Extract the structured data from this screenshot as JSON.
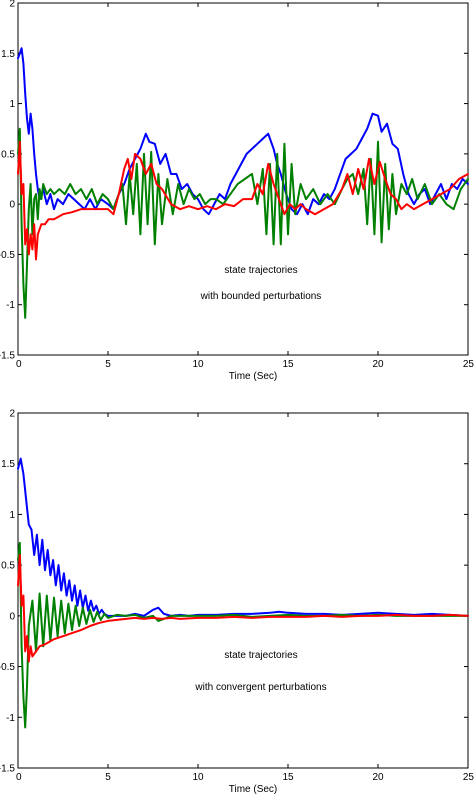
{
  "chart_data": [
    {
      "type": "line",
      "xlabel": "Time (Sec)",
      "ylabel": "",
      "title": "",
      "xlim": [
        0,
        25
      ],
      "ylim": [
        -1.5,
        2
      ],
      "xticks": [
        "0",
        "5",
        "10",
        "15",
        "20",
        "25"
      ],
      "yticks": [
        "-1.5",
        "-1",
        "-0.5",
        "0",
        "0.5",
        "1",
        "1.5",
        "2"
      ],
      "grid": false,
      "annotations": [
        "state trajectories",
        "with bounded perturbations"
      ],
      "series": [
        {
          "color": "#0000ff",
          "x": [
            0,
            0.1,
            0.2,
            0.3,
            0.4,
            0.5,
            0.6,
            0.7,
            0.8,
            0.9,
            1.0,
            1.1,
            1.2,
            1.4,
            1.6,
            1.8,
            2.0,
            2.2,
            2.5,
            2.8,
            3.1,
            3.4,
            3.7,
            4.0,
            4.3,
            4.6,
            5.0,
            5.3,
            5.6,
            5.9,
            6.2,
            6.5,
            6.8,
            7.1,
            7.3,
            7.6,
            7.9,
            8.2,
            8.5,
            8.8,
            9.1,
            9.4,
            9.7,
            10.0,
            10.3,
            10.6,
            10.9,
            11.2,
            11.5,
            11.8,
            12.1,
            12.4,
            12.7,
            13.0,
            13.3,
            13.6,
            13.9,
            14.2,
            14.4,
            14.6,
            14.9,
            15.2,
            15.5,
            15.8,
            16.1,
            16.4,
            16.7,
            17.0,
            17.3,
            17.6,
            17.9,
            18.2,
            18.5,
            18.8,
            19.1,
            19.4,
            19.7,
            20.0,
            20.2,
            20.5,
            20.8,
            21.1,
            21.4,
            21.7,
            22.0,
            22.3,
            22.6,
            22.9,
            23.2,
            23.5,
            23.8,
            24.1,
            24.4,
            24.7,
            25.0
          ],
          "y": [
            1.45,
            1.5,
            1.55,
            1.4,
            1.1,
            0.85,
            0.7,
            0.9,
            0.75,
            0.5,
            0.3,
            0.15,
            0.05,
            0.15,
            0.0,
            0.1,
            -0.05,
            0.05,
            0.0,
            0.1,
            0.05,
            0.0,
            -0.05,
            0.05,
            -0.05,
            0.05,
            0.0,
            -0.05,
            0.1,
            0.2,
            0.35,
            0.45,
            0.55,
            0.7,
            0.62,
            0.6,
            0.4,
            0.5,
            0.3,
            0.3,
            0.15,
            0.2,
            0.1,
            0.05,
            -0.05,
            -0.1,
            0.0,
            0.1,
            0.05,
            0.2,
            0.3,
            0.4,
            0.5,
            0.55,
            0.6,
            0.65,
            0.7,
            0.55,
            0.4,
            0.3,
            0.1,
            -0.05,
            -0.1,
            0.0,
            -0.1,
            0.05,
            0.0,
            0.1,
            0.05,
            0.15,
            0.3,
            0.45,
            0.5,
            0.55,
            0.65,
            0.75,
            0.9,
            0.88,
            0.72,
            0.8,
            0.6,
            0.55,
            0.3,
            0.1,
            0.0,
            0.1,
            0.15,
            0.0,
            0.1,
            0.2,
            0.05,
            0.2,
            0.15,
            0.25,
            0.2
          ]
        },
        {
          "color": "#008000",
          "x": [
            0,
            0.1,
            0.2,
            0.3,
            0.4,
            0.5,
            0.6,
            0.7,
            0.8,
            0.9,
            1.0,
            1.1,
            1.2,
            1.3,
            1.4,
            1.6,
            1.8,
            2.0,
            2.3,
            2.6,
            2.9,
            3.2,
            3.5,
            3.8,
            4.1,
            4.4,
            4.7,
            5.0,
            5.3,
            5.6,
            5.8,
            6.0,
            6.2,
            6.4,
            6.6,
            6.8,
            7.0,
            7.2,
            7.4,
            7.6,
            7.8,
            8.0,
            8.3,
            8.6,
            8.9,
            9.2,
            9.5,
            9.8,
            10.1,
            10.4,
            10.7,
            11.0,
            11.4,
            11.8,
            12.2,
            12.6,
            13.0,
            13.3,
            13.6,
            13.8,
            14.0,
            14.2,
            14.4,
            14.6,
            14.8,
            15.0,
            15.2,
            15.4,
            15.7,
            16.0,
            16.4,
            16.8,
            17.2,
            17.6,
            18.0,
            18.3,
            18.6,
            18.9,
            19.2,
            19.4,
            19.6,
            19.8,
            20.0,
            20.2,
            20.4,
            20.6,
            20.8,
            21.0,
            21.3,
            21.6,
            21.9,
            22.2,
            22.6,
            23.0,
            23.4,
            23.8,
            24.2,
            24.6,
            25.0
          ],
          "y": [
            0.5,
            0.75,
            -0.2,
            -0.8,
            -1.13,
            -0.6,
            -0.05,
            0.2,
            -0.3,
            0.05,
            0.1,
            -0.15,
            0.15,
            0.05,
            0.2,
            0.1,
            0.15,
            0.1,
            0.15,
            0.1,
            0.2,
            0.1,
            0.15,
            0.05,
            0.15,
            0.0,
            0.1,
            0.05,
            -0.05,
            0.1,
            0.2,
            -0.2,
            0.3,
            -0.1,
            0.4,
            -0.3,
            0.5,
            -0.2,
            0.52,
            -0.4,
            0.3,
            -0.2,
            0.25,
            -0.1,
            0.2,
            0.0,
            0.15,
            0.05,
            0.1,
            0.0,
            0.05,
            0.05,
            0.0,
            0.1,
            0.2,
            0.25,
            0.3,
            0.0,
            0.35,
            -0.3,
            0.4,
            -0.4,
            0.5,
            -0.4,
            0.6,
            -0.3,
            0.4,
            -0.1,
            0.2,
            0.05,
            0.15,
            0.0,
            0.1,
            0.0,
            0.15,
            0.25,
            0.3,
            0.1,
            0.35,
            -0.2,
            0.45,
            -0.3,
            0.62,
            -0.38,
            0.4,
            -0.25,
            0.3,
            -0.1,
            0.2,
            0.1,
            0.25,
            0.05,
            0.2,
            0.0,
            0.1,
            0.0,
            -0.05,
            0.15,
            0.25
          ]
        },
        {
          "color": "#ff0000",
          "x": [
            0,
            0.1,
            0.2,
            0.3,
            0.4,
            0.5,
            0.6,
            0.7,
            0.8,
            0.9,
            1.0,
            1.1,
            1.2,
            1.3,
            1.5,
            1.7,
            2.0,
            2.5,
            3.0,
            3.5,
            4.0,
            4.5,
            5.0,
            5.3,
            5.6,
            5.9,
            6.1,
            6.3,
            6.5,
            6.8,
            7.1,
            7.4,
            7.7,
            8.0,
            8.5,
            9.0,
            9.5,
            10.0,
            10.5,
            11.0,
            11.5,
            12.0,
            12.5,
            13.0,
            13.3,
            13.6,
            13.9,
            14.2,
            14.5,
            14.8,
            15.1,
            15.4,
            15.7,
            16.0,
            16.5,
            17.0,
            17.5,
            18.0,
            18.3,
            18.6,
            18.9,
            19.2,
            19.5,
            19.8,
            20.1,
            20.4,
            20.7,
            21.0,
            21.3,
            21.6,
            22.0,
            22.5,
            23.0,
            23.5,
            24.0,
            24.5,
            25.0
          ],
          "y": [
            0.3,
            0.62,
            0.1,
            0.2,
            -0.4,
            -0.25,
            -0.5,
            -0.3,
            -0.45,
            -0.2,
            -0.55,
            -0.3,
            -0.25,
            -0.2,
            -0.2,
            -0.15,
            -0.15,
            -0.1,
            -0.08,
            -0.05,
            -0.05,
            -0.05,
            -0.05,
            -0.1,
            0.1,
            0.35,
            0.45,
            0.25,
            0.5,
            0.45,
            0.3,
            0.4,
            0.2,
            0.15,
            0.0,
            -0.05,
            -0.02,
            -0.05,
            -0.02,
            -0.05,
            0.0,
            -0.02,
            0.05,
            0.05,
            0.2,
            0.1,
            0.4,
            0.2,
            0.05,
            -0.1,
            0.0,
            -0.05,
            0.0,
            -0.05,
            -0.1,
            -0.05,
            0.0,
            0.15,
            0.3,
            0.1,
            0.35,
            0.15,
            0.45,
            0.2,
            0.42,
            0.25,
            0.1,
            0.05,
            -0.05,
            0.0,
            -0.05,
            0.0,
            0.05,
            0.1,
            0.15,
            0.25,
            0.3
          ]
        }
      ]
    },
    {
      "type": "line",
      "xlabel": "Time (Sec)",
      "ylabel": "",
      "title": "",
      "xlim": [
        0,
        25
      ],
      "ylim": [
        -1.5,
        2
      ],
      "xticks": [
        "0",
        "5",
        "10",
        "15",
        "20",
        "25"
      ],
      "yticks": [
        "-1.5",
        "-1",
        "-0.5",
        "0",
        "0.5",
        "1",
        "1.5",
        "2"
      ],
      "grid": false,
      "annotations": [
        "state trajectories",
        "with convergent perturbations"
      ],
      "series": [
        {
          "color": "#0000ff",
          "x": [
            0,
            0.15,
            0.3,
            0.45,
            0.6,
            0.75,
            0.9,
            1.05,
            1.2,
            1.35,
            1.5,
            1.65,
            1.8,
            1.95,
            2.1,
            2.25,
            2.4,
            2.55,
            2.7,
            2.85,
            3.0,
            3.15,
            3.3,
            3.45,
            3.6,
            3.75,
            3.9,
            4.05,
            4.2,
            4.35,
            4.5,
            4.65,
            4.8,
            5.0,
            5.5,
            6.0,
            6.5,
            7.0,
            7.5,
            7.8,
            8.1,
            8.5,
            9.0,
            9.5,
            10.0,
            11.0,
            12.0,
            13.0,
            14.0,
            14.5,
            15.0,
            16.0,
            17.0,
            18.0,
            19.0,
            20.0,
            21.0,
            22.0,
            23.0,
            24.0,
            25.0
          ],
          "y": [
            1.45,
            1.55,
            1.4,
            1.15,
            0.9,
            0.85,
            0.6,
            0.8,
            0.5,
            0.75,
            0.45,
            0.65,
            0.4,
            0.55,
            0.3,
            0.5,
            0.25,
            0.42,
            0.2,
            0.35,
            0.15,
            0.3,
            0.1,
            0.25,
            0.08,
            0.2,
            0.05,
            0.15,
            0.05,
            0.1,
            0.02,
            0.06,
            0.02,
            0.0,
            0.0,
            0.0,
            0.02,
            0.0,
            0.06,
            0.08,
            0.02,
            0.0,
            0.01,
            0.0,
            0.01,
            0.01,
            0.02,
            0.02,
            0.03,
            0.04,
            0.03,
            0.02,
            0.02,
            0.01,
            0.02,
            0.03,
            0.02,
            0.01,
            0.02,
            0.01,
            0.0
          ]
        },
        {
          "color": "#008000",
          "x": [
            0,
            0.1,
            0.2,
            0.3,
            0.4,
            0.5,
            0.6,
            0.8,
            1.0,
            1.2,
            1.4,
            1.6,
            1.8,
            2.0,
            2.2,
            2.4,
            2.6,
            2.8,
            3.0,
            3.2,
            3.4,
            3.6,
            3.8,
            4.0,
            4.2,
            4.4,
            4.6,
            4.8,
            5.0,
            5.5,
            6.0,
            6.5,
            7.0,
            7.5,
            7.8,
            8.1,
            8.5,
            9.0,
            10.0,
            11.0,
            12.0,
            13.0,
            14.0,
            15.0,
            16.0,
            17.0,
            18.0,
            19.0,
            20.0,
            21.0,
            22.0,
            23.0,
            24.0,
            25.0
          ],
          "y": [
            0.55,
            0.72,
            -0.3,
            -0.8,
            -1.1,
            -0.7,
            -0.1,
            0.15,
            -0.35,
            0.22,
            -0.3,
            0.2,
            -0.25,
            0.18,
            -0.2,
            0.15,
            -0.17,
            0.12,
            -0.14,
            0.1,
            -0.1,
            0.08,
            -0.08,
            0.06,
            -0.06,
            0.04,
            -0.04,
            0.02,
            -0.02,
            0.01,
            0.0,
            0.01,
            -0.02,
            0.0,
            -0.05,
            -0.03,
            0.0,
            0.0,
            0.0,
            0.0,
            0.01,
            -0.01,
            0.0,
            0.01,
            0.0,
            0.0,
            0.01,
            0.0,
            0.01,
            0.0,
            0.0,
            0.0,
            0.0,
            0.0
          ]
        },
        {
          "color": "#ff0000",
          "x": [
            0,
            0.1,
            0.2,
            0.3,
            0.4,
            0.5,
            0.6,
            0.7,
            0.8,
            1.0,
            1.2,
            1.5,
            2.0,
            2.5,
            3.0,
            3.5,
            4.0,
            4.5,
            5.0,
            5.5,
            6.0,
            6.5,
            7.0,
            7.5,
            8.0,
            8.5,
            9.0,
            10.0,
            11.0,
            12.0,
            13.0,
            14.0,
            15.0,
            16.0,
            17.0,
            18.0,
            19.0,
            20.0,
            21.0,
            22.0,
            23.0,
            24.0,
            25.0
          ],
          "y": [
            0.3,
            0.6,
            0.1,
            0.2,
            -0.35,
            -0.2,
            -0.45,
            -0.3,
            -0.4,
            -0.35,
            -0.3,
            -0.28,
            -0.23,
            -0.2,
            -0.17,
            -0.14,
            -0.1,
            -0.07,
            -0.05,
            -0.04,
            -0.03,
            -0.02,
            -0.03,
            -0.02,
            -0.03,
            -0.02,
            -0.03,
            -0.02,
            -0.02,
            -0.01,
            -0.02,
            -0.01,
            -0.01,
            -0.01,
            0.0,
            -0.01,
            0.0,
            0.0,
            0.01,
            0.0,
            0.0,
            0.01,
            0.0
          ]
        }
      ]
    }
  ]
}
